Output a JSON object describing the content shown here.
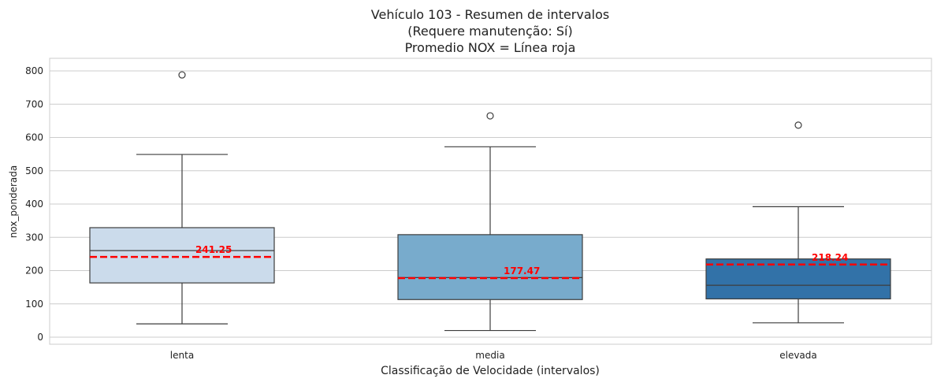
{
  "chart_data": {
    "type": "box",
    "title_lines": [
      "Vehículo 103 - Resumen de intervalos",
      "(Requere manutenção: Sí)",
      "Promedio NOX = Línea roja"
    ],
    "xlabel": "Classificação de Velocidade (intervalos)",
    "ylabel": "nox_ponderada",
    "ylim": [
      -25,
      825
    ],
    "yticks": [
      0,
      100,
      200,
      300,
      400,
      500,
      600,
      700,
      800
    ],
    "grid": "horizontal",
    "categories": [
      "lenta",
      "media",
      "elevada"
    ],
    "boxes": [
      {
        "category": "lenta",
        "whisker_low": 40,
        "q1": 163,
        "median": 260,
        "q3": 329,
        "whisker_high": 549,
        "outliers": [
          788
        ],
        "mean": 241.25,
        "mean_label": "241.25",
        "color": "#cbdbeb"
      },
      {
        "category": "media",
        "whisker_low": 20,
        "q1": 113,
        "median": 179,
        "q3": 308,
        "whisker_high": 572,
        "outliers": [
          665
        ],
        "mean": 177.47,
        "mean_label": "177.47",
        "color": "#78abcc"
      },
      {
        "category": "elevada",
        "whisker_low": 43,
        "q1": 115,
        "median": 156,
        "q3": 235,
        "whisker_high": 392,
        "outliers": [
          637
        ],
        "mean": 218.24,
        "mean_label": "218.24",
        "color": "#3272a8"
      }
    ],
    "mean_line_color": "#ff0000"
  }
}
